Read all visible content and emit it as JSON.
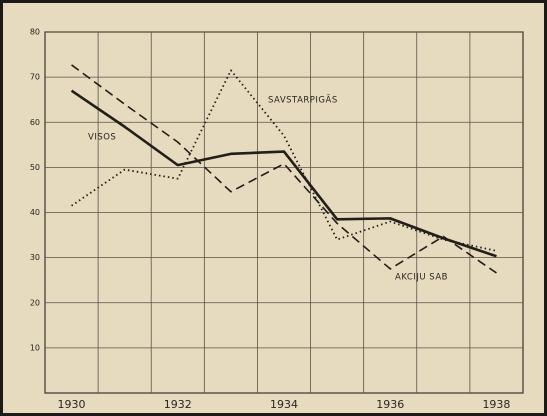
{
  "chart_data": {
    "type": "line",
    "categories": [
      "1930",
      null,
      "1932",
      null,
      "1934",
      null,
      "1936",
      null,
      "1938"
    ],
    "ylim": [
      0,
      80
    ],
    "yticks": [
      10,
      20,
      30,
      40,
      50,
      60,
      70,
      80
    ],
    "grid": true,
    "series": [
      {
        "name": "VISOS",
        "color": "#221e18",
        "dash": "solid",
        "values": [
          67,
          59,
          50.5,
          53,
          53.5,
          38.5,
          38.7,
          34.3,
          30.3
        ]
      },
      {
        "name": "SAVSTARPIGĀS",
        "color": "#221e18",
        "dash": "dotted",
        "values": [
          41.5,
          49.5,
          47.5,
          71.5,
          57,
          34,
          38,
          34,
          31.5
        ]
      },
      {
        "name": "AKCIJU SAB",
        "color": "#221e18",
        "dash": "dashed",
        "values": [
          72.7,
          64,
          55.6,
          44.6,
          50.8,
          37.6,
          27.5,
          34.7,
          26.6
        ]
      }
    ]
  }
}
